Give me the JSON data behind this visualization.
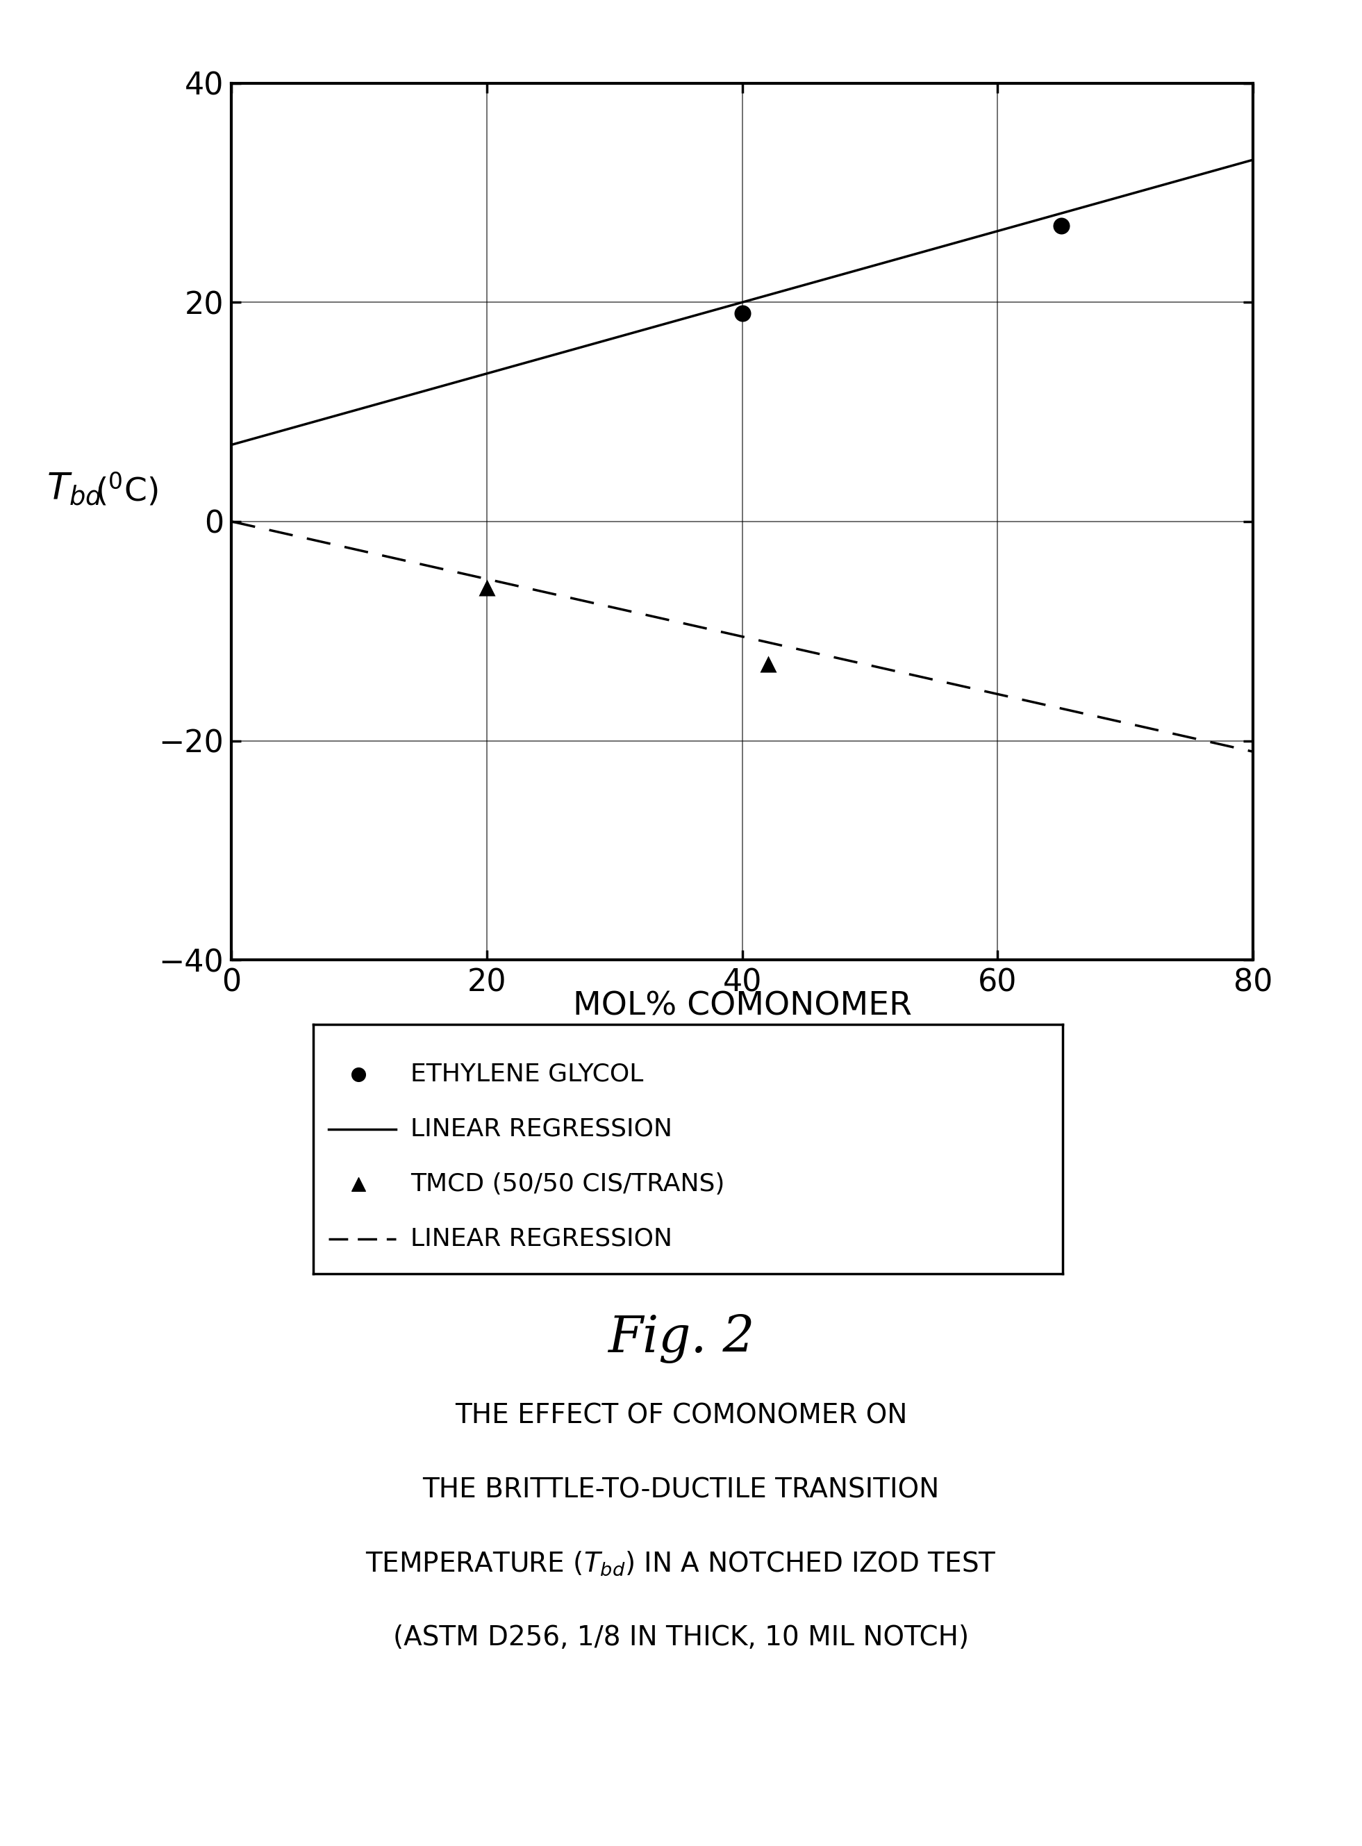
{
  "xlim": [
    0,
    80
  ],
  "ylim": [
    -40,
    40
  ],
  "xticks": [
    0,
    20,
    40,
    60,
    80
  ],
  "yticks": [
    -40,
    -20,
    0,
    20,
    40
  ],
  "xlabel": "MOL% COMONOMER",
  "eg_points_x": [
    40,
    65
  ],
  "eg_points_y": [
    19,
    27
  ],
  "eg_line_x": [
    0,
    80
  ],
  "eg_line_y": [
    7,
    33
  ],
  "tmcd_points_x": [
    20,
    42
  ],
  "tmcd_points_y": [
    -6,
    -13
  ],
  "tmcd_line_x": [
    0,
    80
  ],
  "tmcd_line_y": [
    0,
    -21
  ],
  "legend_labels": [
    "ETHYLENE GLYCOL",
    "LINEAR REGRESSION",
    "TMCD (50/50 CIS/TRANS)",
    "LINEAR REGRESSION"
  ],
  "fig_label": "Fig. 2",
  "caption_lines": [
    "THE EFFECT OF COMONOMER ON",
    "THE BRITTLE-TO-DUCTILE TRANSITION",
    "TEMPERATURE (T_bd) IN A NOTCHED IZOD TEST",
    "(ASTM D256, 1/8 IN THICK, 10 MIL NOTCH)"
  ],
  "line_color": "#000000",
  "bg_color": "#ffffff"
}
